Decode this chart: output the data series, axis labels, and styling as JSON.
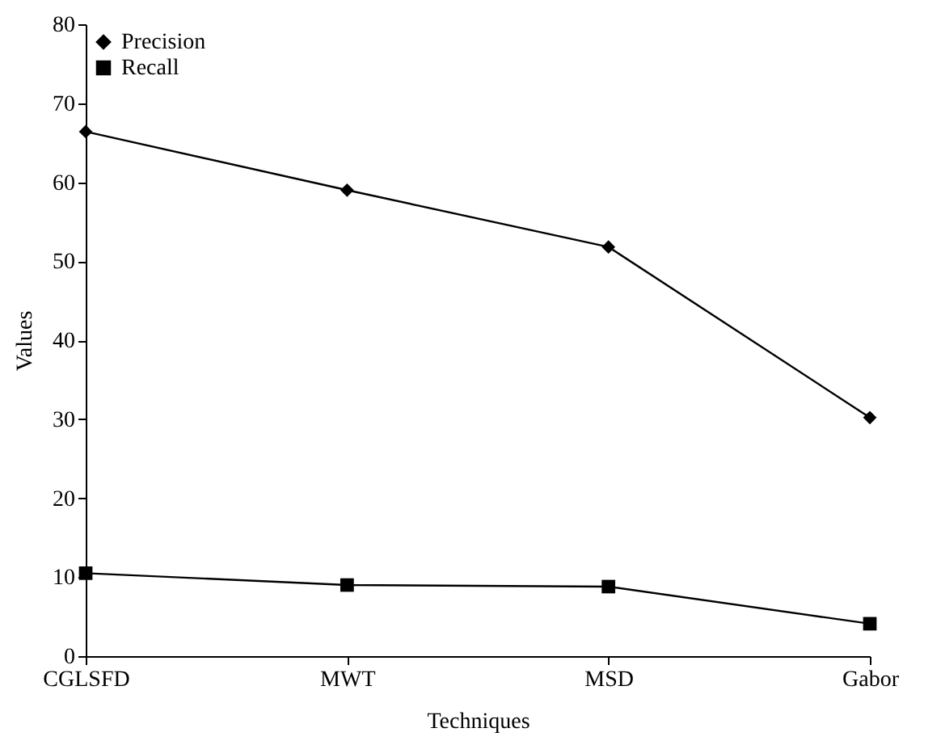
{
  "chart_data": {
    "type": "line",
    "xlabel": "Techniques",
    "ylabel": "Values",
    "categories": [
      "CGLSFD",
      "MWT",
      "MSD",
      "Gabor"
    ],
    "series": [
      {
        "name": "Precision",
        "color": "#000000",
        "marker": "diamond",
        "values": [
          66.4,
          59.0,
          51.8,
          30.2
        ]
      },
      {
        "name": "Recall",
        "color": "#000000",
        "marker": "square",
        "values": [
          10.5,
          9.0,
          8.8,
          4.1
        ]
      }
    ],
    "ylim": [
      0,
      80
    ],
    "yticks": [
      0,
      10,
      20,
      30,
      40,
      50,
      60,
      70,
      80
    ],
    "grid": false,
    "legend": "top left",
    "line_style": "solid"
  }
}
